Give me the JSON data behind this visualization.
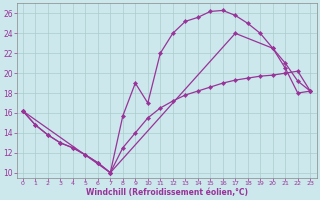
{
  "xlabel": "Windchill (Refroidissement éolien,°C)",
  "bg_color": "#cce8ec",
  "line_color": "#993399",
  "grid_color": "#aacccc",
  "xlim": [
    -0.5,
    23.5
  ],
  "ylim": [
    9.5,
    27.0
  ],
  "xticks": [
    0,
    1,
    2,
    3,
    4,
    5,
    6,
    7,
    8,
    9,
    10,
    11,
    12,
    13,
    14,
    15,
    16,
    17,
    18,
    19,
    20,
    21,
    22,
    23
  ],
  "yticks": [
    10,
    12,
    14,
    16,
    18,
    20,
    22,
    24,
    26
  ],
  "curve1_x": [
    0,
    1,
    2,
    3,
    4,
    5,
    6,
    7,
    8,
    9,
    10,
    11,
    12,
    13,
    14,
    15,
    16,
    17,
    18,
    19,
    20,
    21,
    22,
    23
  ],
  "curve1_y": [
    16.2,
    14.8,
    13.8,
    13.0,
    12.5,
    11.8,
    11.0,
    10.0,
    15.7,
    19.0,
    17.0,
    22.0,
    24.0,
    25.2,
    25.6,
    26.2,
    26.3,
    25.8,
    25.0,
    24.0,
    22.5,
    20.5,
    18.0,
    18.2
  ],
  "curve2_x": [
    0,
    1,
    2,
    3,
    4,
    5,
    6,
    7,
    8,
    9,
    10,
    11,
    12,
    13,
    14,
    15,
    16,
    17,
    18,
    19,
    20,
    21,
    22,
    23
  ],
  "curve2_y": [
    16.2,
    14.8,
    13.8,
    13.0,
    12.5,
    11.8,
    11.0,
    10.0,
    12.5,
    14.0,
    15.5,
    16.5,
    17.2,
    17.8,
    18.2,
    18.6,
    19.0,
    19.3,
    19.5,
    19.7,
    19.8,
    20.0,
    20.2,
    18.2
  ],
  "curve3_x": [
    0,
    7,
    17,
    20,
    21,
    22,
    23
  ],
  "curve3_y": [
    16.2,
    10.0,
    24.0,
    22.5,
    21.0,
    19.2,
    18.2
  ]
}
